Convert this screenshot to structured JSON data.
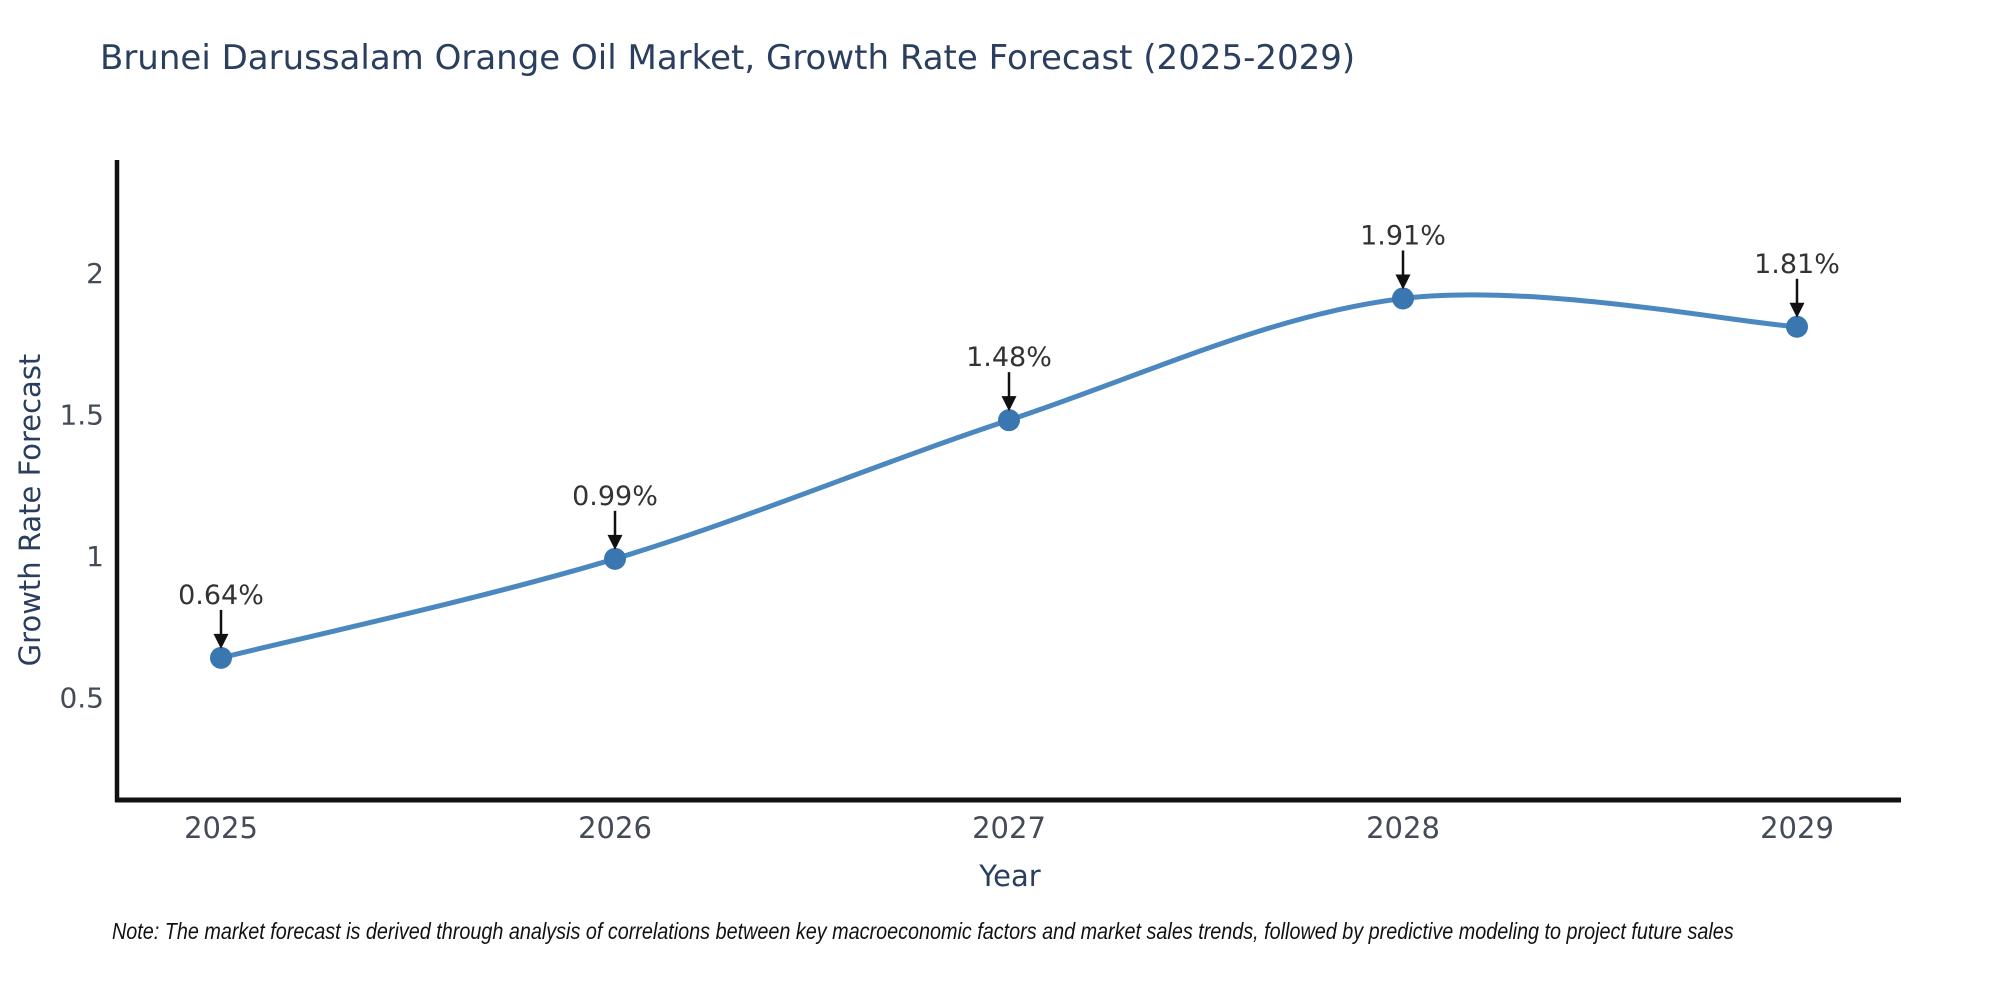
{
  "title": "Brunei Darussalam Orange Oil Market, Growth Rate Forecast (2025-2029)",
  "note": "Note: The market forecast is derived through analysis of correlations between key macroeconomic factors and market sales trends, followed by predictive modeling to project future sales",
  "chart_data": {
    "type": "line",
    "title": "Brunei Darussalam Orange Oil Market, Growth Rate Forecast (2025-2029)",
    "xlabel": "Year",
    "ylabel": "Growth Rate Forecast",
    "x": [
      2025,
      2026,
      2027,
      2028,
      2029
    ],
    "categories": [
      "2025",
      "2026",
      "2027",
      "2028",
      "2029"
    ],
    "values": [
      0.64,
      0.99,
      1.48,
      1.91,
      1.81
    ],
    "point_labels": [
      "0.64%",
      "0.99%",
      "1.48%",
      "1.91%",
      "1.81%"
    ],
    "yticks": [
      0.5,
      1,
      1.5,
      2
    ],
    "ytick_labels": [
      "0.5",
      "1",
      "1.5",
      "2"
    ],
    "ylim": [
      0.14,
      2.4
    ],
    "line_shape": "spline",
    "grid": false,
    "legend": "none",
    "annotations": "value labels with downward arrows above each point",
    "colors": {
      "line": "#4b88c0",
      "marker": "#3a77b0",
      "axis": "#111111",
      "arrow": "#111111",
      "title": "#2a3f5f",
      "tick": "#444b57",
      "annotation_text": "#333333",
      "background": "#ffffff"
    }
  }
}
